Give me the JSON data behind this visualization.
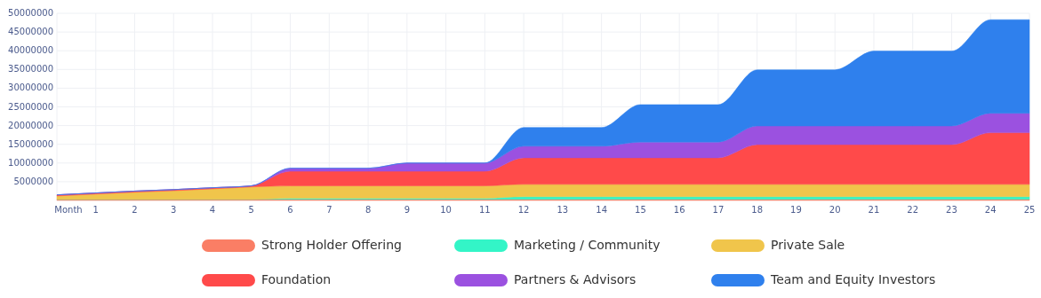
{
  "chart_data": {
    "type": "area",
    "stacked": true,
    "legend": "bottom",
    "grid": true,
    "x": [
      0,
      1,
      2,
      3,
      4,
      5,
      6,
      7,
      8,
      9,
      10,
      11,
      12,
      13,
      14,
      15,
      16,
      17,
      18,
      19,
      20,
      21,
      22,
      23,
      24,
      25
    ],
    "xlim": [
      0,
      25
    ],
    "xticks": [
      {
        "value": 0,
        "label": "Month"
      },
      1,
      2,
      3,
      4,
      5,
      6,
      7,
      8,
      9,
      10,
      11,
      12,
      13,
      14,
      15,
      16,
      17,
      18,
      19,
      20,
      21,
      22,
      23,
      24,
      25
    ],
    "ylim": [
      0,
      50000000
    ],
    "yticks": [
      5000000,
      10000000,
      15000000,
      20000000,
      25000000,
      30000000,
      35000000,
      40000000,
      45000000,
      50000000
    ],
    "series": [
      {
        "name": "Strong Holder Offering",
        "color": "#fa7e65",
        "values": [
          300000,
          300000,
          300000,
          300000,
          300000,
          300000,
          300000,
          300000,
          300000,
          300000,
          300000,
          300000,
          300000,
          300000,
          300000,
          300000,
          300000,
          300000,
          300000,
          300000,
          300000,
          300000,
          300000,
          300000,
          300000,
          300000
        ]
      },
      {
        "name": "Marketing / Community",
        "color": "#33f5c7",
        "values": [
          0,
          0,
          0,
          0,
          0,
          0,
          300000,
          300000,
          300000,
          300000,
          300000,
          300000,
          700000,
          700000,
          700000,
          700000,
          700000,
          700000,
          700000,
          700000,
          700000,
          700000,
          700000,
          700000,
          700000,
          700000
        ]
      },
      {
        "name": "Private Sale",
        "color": "#f0c54b",
        "values": [
          900000,
          1400000,
          1900000,
          2300000,
          2800000,
          3300000,
          3300000,
          3300000,
          3300000,
          3300000,
          3300000,
          3300000,
          3300000,
          3300000,
          3300000,
          3300000,
          3300000,
          3300000,
          3300000,
          3300000,
          3300000,
          3300000,
          3300000,
          3300000,
          3300000,
          3300000
        ]
      },
      {
        "name": "Foundation",
        "color": "#ff4a4a",
        "values": [
          300000,
          300000,
          300000,
          300000,
          300000,
          300000,
          3900000,
          3900000,
          3900000,
          3900000,
          3900000,
          3900000,
          7100000,
          7100000,
          7100000,
          7100000,
          7100000,
          7100000,
          10600000,
          10600000,
          10600000,
          10600000,
          10600000,
          10600000,
          13800000,
          13800000
        ]
      },
      {
        "name": "Partners & Advisors",
        "color": "#9b51e0",
        "values": [
          0,
          0,
          0,
          0,
          0,
          0,
          800000,
          800000,
          800000,
          2200000,
          2200000,
          2200000,
          3100000,
          3100000,
          3100000,
          4200000,
          4200000,
          4200000,
          5000000,
          5000000,
          5000000,
          5000000,
          5000000,
          5000000,
          5200000,
          5200000
        ]
      },
      {
        "name": "Team and Equity Investors",
        "color": "#2f80ed",
        "values": [
          0,
          0,
          0,
          0,
          0,
          0,
          0,
          0,
          0,
          0,
          0,
          0,
          5000000,
          5000000,
          5000000,
          10000000,
          10000000,
          10000000,
          15000000,
          15000000,
          15000000,
          20000000,
          20000000,
          20000000,
          25000000,
          25000000
        ]
      }
    ]
  }
}
